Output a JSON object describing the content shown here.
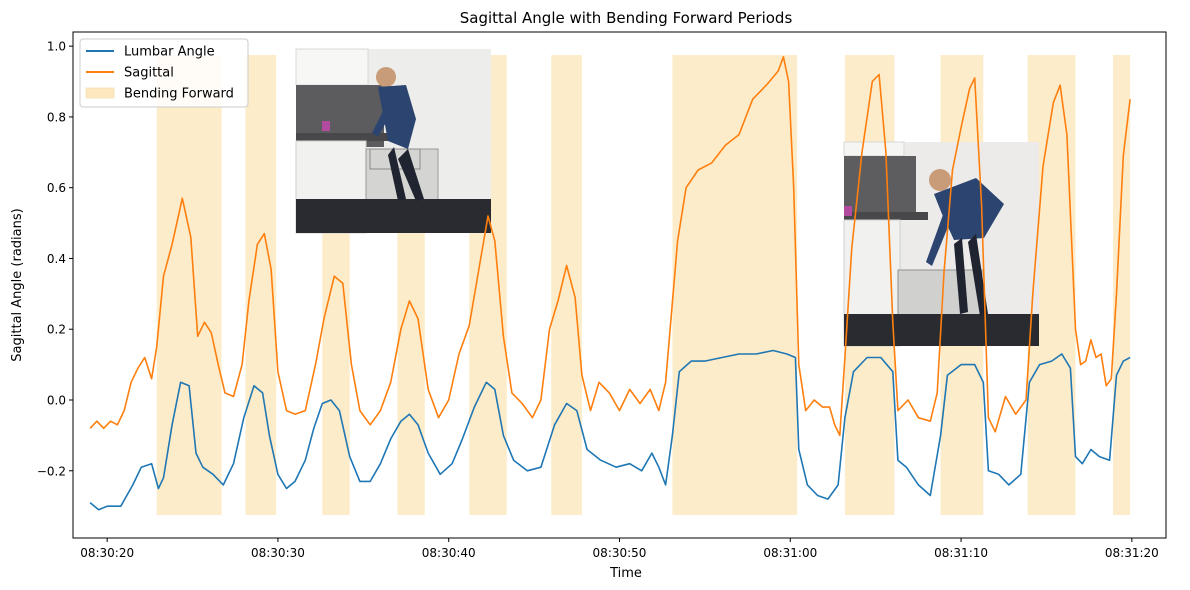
{
  "chart_data": {
    "type": "line",
    "title": "Sagittal Angle with Bending Forward Periods",
    "xlabel": "Time",
    "ylabel": "Sagittal Angle (radians)",
    "xlim": [
      "08:30:18",
      "08:31:22"
    ],
    "ylim": [
      -0.39,
      1.04
    ],
    "x_ticks": [
      "08:30:20",
      "08:30:30",
      "08:30:40",
      "08:30:50",
      "08:31:00",
      "08:31:10",
      "08:31:20"
    ],
    "y_ticks": [
      -0.2,
      0.0,
      0.2,
      0.4,
      0.6,
      0.8,
      1.0
    ],
    "y_tick_labels": [
      "−0.2",
      "0.0",
      "0.2",
      "0.4",
      "0.6",
      "0.8",
      "1.0"
    ],
    "grid": false,
    "legend": "top-left",
    "legend_entries": [
      {
        "label": "Lumbar Angle",
        "kind": "line",
        "color": "#1f77b4"
      },
      {
        "label": "Sagittal",
        "kind": "line",
        "color": "#ff7f0e"
      },
      {
        "label": "Bending Forward",
        "kind": "patch",
        "color": "#fde9c1"
      }
    ],
    "colors": {
      "lumbar": "#1f77b4",
      "sagittal": "#ff7f0e",
      "bending": "#fde9c1"
    },
    "bending_forward_periods": [
      [
        "08:30:22.9",
        "08:30:26.7"
      ],
      [
        "08:30:28.1",
        "08:30:29.9"
      ],
      [
        "08:30:32.6",
        "08:30:34.2"
      ],
      [
        "08:30:37.0",
        "08:30:38.6"
      ],
      [
        "08:30:41.2",
        "08:30:43.4"
      ],
      [
        "08:30:46.0",
        "08:30:47.8"
      ],
      [
        "08:30:53.1",
        "08:31:00.4"
      ],
      [
        "08:31:03.2",
        "08:31:06.1"
      ],
      [
        "08:31:08.8",
        "08:31:11.3"
      ],
      [
        "08:31:13.9",
        "08:31:16.7"
      ],
      [
        "08:31:18.9",
        "08:31:19.9"
      ]
    ],
    "series": [
      {
        "name": "Lumbar Angle",
        "color": "#1f77b4",
        "points": [
          [
            "08:30:19.0",
            -0.29
          ],
          [
            "08:30:19.5",
            -0.31
          ],
          [
            "08:30:20.0",
            -0.3
          ],
          [
            "08:30:20.8",
            -0.3
          ],
          [
            "08:30:21.5",
            -0.24
          ],
          [
            "08:30:22.0",
            -0.19
          ],
          [
            "08:30:22.6",
            -0.18
          ],
          [
            "08:30:23.0",
            -0.25
          ],
          [
            "08:30:23.3",
            -0.22
          ],
          [
            "08:30:23.8",
            -0.07
          ],
          [
            "08:30:24.3",
            0.05
          ],
          [
            "08:30:24.8",
            0.04
          ],
          [
            "08:30:25.2",
            -0.15
          ],
          [
            "08:30:25.6",
            -0.19
          ],
          [
            "08:30:26.2",
            -0.21
          ],
          [
            "08:30:26.8",
            -0.24
          ],
          [
            "08:30:27.4",
            -0.18
          ],
          [
            "08:30:28.0",
            -0.05
          ],
          [
            "08:30:28.6",
            0.04
          ],
          [
            "08:30:29.1",
            0.02
          ],
          [
            "08:30:29.5",
            -0.1
          ],
          [
            "08:30:30.0",
            -0.21
          ],
          [
            "08:30:30.5",
            -0.25
          ],
          [
            "08:30:31.0",
            -0.23
          ],
          [
            "08:30:31.6",
            -0.17
          ],
          [
            "08:30:32.1",
            -0.08
          ],
          [
            "08:30:32.6",
            -0.01
          ],
          [
            "08:30:33.1",
            0.0
          ],
          [
            "08:30:33.6",
            -0.03
          ],
          [
            "08:30:34.2",
            -0.16
          ],
          [
            "08:30:34.8",
            -0.23
          ],
          [
            "08:30:35.4",
            -0.23
          ],
          [
            "08:30:36.0",
            -0.18
          ],
          [
            "08:30:36.6",
            -0.11
          ],
          [
            "08:30:37.2",
            -0.06
          ],
          [
            "08:30:37.7",
            -0.04
          ],
          [
            "08:30:38.2",
            -0.07
          ],
          [
            "08:30:38.8",
            -0.15
          ],
          [
            "08:30:39.5",
            -0.21
          ],
          [
            "08:30:40.2",
            -0.18
          ],
          [
            "08:30:40.8",
            -0.11
          ],
          [
            "08:30:41.5",
            -0.02
          ],
          [
            "08:30:42.2",
            0.05
          ],
          [
            "08:30:42.7",
            0.03
          ],
          [
            "08:30:43.2",
            -0.1
          ],
          [
            "08:30:43.8",
            -0.17
          ],
          [
            "08:30:44.6",
            -0.2
          ],
          [
            "08:30:45.4",
            -0.19
          ],
          [
            "08:30:46.2",
            -0.07
          ],
          [
            "08:30:46.9",
            -0.01
          ],
          [
            "08:30:47.5",
            -0.03
          ],
          [
            "08:30:48.1",
            -0.14
          ],
          [
            "08:30:48.9",
            -0.17
          ],
          [
            "08:30:49.8",
            -0.19
          ],
          [
            "08:30:50.6",
            -0.18
          ],
          [
            "08:30:51.3",
            -0.2
          ],
          [
            "08:30:51.9",
            -0.15
          ],
          [
            "08:30:52.3",
            -0.19
          ],
          [
            "08:30:52.7",
            -0.24
          ],
          [
            "08:30:53.1",
            -0.1
          ],
          [
            "08:30:53.5",
            0.08
          ],
          [
            "08:30:54.2",
            0.11
          ],
          [
            "08:30:55.0",
            0.11
          ],
          [
            "08:30:56.0",
            0.12
          ],
          [
            "08:30:57.0",
            0.13
          ],
          [
            "08:30:58.0",
            0.13
          ],
          [
            "08:30:59.0",
            0.14
          ],
          [
            "08:30:59.8",
            0.13
          ],
          [
            "08:31:00.3",
            0.12
          ],
          [
            "08:31:00.5",
            -0.14
          ],
          [
            "08:31:01.0",
            -0.24
          ],
          [
            "08:31:01.6",
            -0.27
          ],
          [
            "08:31:02.2",
            -0.28
          ],
          [
            "08:31:02.8",
            -0.24
          ],
          [
            "08:31:03.2",
            -0.05
          ],
          [
            "08:31:03.7",
            0.08
          ],
          [
            "08:31:04.5",
            0.12
          ],
          [
            "08:31:05.3",
            0.12
          ],
          [
            "08:31:06.0",
            0.08
          ],
          [
            "08:31:06.3",
            -0.17
          ],
          [
            "08:31:06.8",
            -0.19
          ],
          [
            "08:31:07.5",
            -0.24
          ],
          [
            "08:31:08.2",
            -0.27
          ],
          [
            "08:31:08.8",
            -0.1
          ],
          [
            "08:31:09.2",
            0.07
          ],
          [
            "08:31:10.0",
            0.1
          ],
          [
            "08:31:10.8",
            0.1
          ],
          [
            "08:31:11.3",
            0.05
          ],
          [
            "08:31:11.6",
            -0.2
          ],
          [
            "08:31:12.2",
            -0.21
          ],
          [
            "08:31:12.8",
            -0.24
          ],
          [
            "08:31:13.5",
            -0.21
          ],
          [
            "08:31:14.0",
            0.05
          ],
          [
            "08:31:14.6",
            0.1
          ],
          [
            "08:31:15.3",
            0.11
          ],
          [
            "08:31:15.9",
            0.13
          ],
          [
            "08:31:16.4",
            0.09
          ],
          [
            "08:31:16.7",
            -0.16
          ],
          [
            "08:31:17.1",
            -0.18
          ],
          [
            "08:31:17.6",
            -0.14
          ],
          [
            "08:31:18.1",
            -0.16
          ],
          [
            "08:31:18.7",
            -0.17
          ],
          [
            "08:31:19.1",
            0.07
          ],
          [
            "08:31:19.5",
            0.11
          ],
          [
            "08:31:19.9",
            0.12
          ]
        ]
      },
      {
        "name": "Sagittal",
        "color": "#ff7f0e",
        "points": [
          [
            "08:30:19.0",
            -0.08
          ],
          [
            "08:30:19.4",
            -0.06
          ],
          [
            "08:30:19.8",
            -0.08
          ],
          [
            "08:30:20.2",
            -0.06
          ],
          [
            "08:30:20.6",
            -0.07
          ],
          [
            "08:30:21.0",
            -0.03
          ],
          [
            "08:30:21.4",
            0.05
          ],
          [
            "08:30:21.8",
            0.09
          ],
          [
            "08:30:22.2",
            0.12
          ],
          [
            "08:30:22.6",
            0.06
          ],
          [
            "08:30:22.9",
            0.15
          ],
          [
            "08:30:23.3",
            0.35
          ],
          [
            "08:30:23.8",
            0.44
          ],
          [
            "08:30:24.4",
            0.57
          ],
          [
            "08:30:24.9",
            0.46
          ],
          [
            "08:30:25.3",
            0.18
          ],
          [
            "08:30:25.7",
            0.22
          ],
          [
            "08:30:26.1",
            0.19
          ],
          [
            "08:30:26.5",
            0.1
          ],
          [
            "08:30:26.9",
            0.02
          ],
          [
            "08:30:27.4",
            0.01
          ],
          [
            "08:30:27.9",
            0.1
          ],
          [
            "08:30:28.3",
            0.28
          ],
          [
            "08:30:28.8",
            0.44
          ],
          [
            "08:30:29.2",
            0.47
          ],
          [
            "08:30:29.6",
            0.37
          ],
          [
            "08:30:30.0",
            0.08
          ],
          [
            "08:30:30.5",
            -0.03
          ],
          [
            "08:30:31.0",
            -0.04
          ],
          [
            "08:30:31.6",
            -0.03
          ],
          [
            "08:30:32.2",
            0.1
          ],
          [
            "08:30:32.7",
            0.23
          ],
          [
            "08:30:33.3",
            0.35
          ],
          [
            "08:30:33.8",
            0.33
          ],
          [
            "08:30:34.3",
            0.1
          ],
          [
            "08:30:34.8",
            -0.03
          ],
          [
            "08:30:35.4",
            -0.07
          ],
          [
            "08:30:36.0",
            -0.03
          ],
          [
            "08:30:36.6",
            0.05
          ],
          [
            "08:30:37.2",
            0.2
          ],
          [
            "08:30:37.7",
            0.28
          ],
          [
            "08:30:38.2",
            0.23
          ],
          [
            "08:30:38.8",
            0.03
          ],
          [
            "08:30:39.4",
            -0.05
          ],
          [
            "08:30:40.0",
            0.0
          ],
          [
            "08:30:40.6",
            0.13
          ],
          [
            "08:30:41.2",
            0.21
          ],
          [
            "08:30:41.8",
            0.38
          ],
          [
            "08:30:42.3",
            0.52
          ],
          [
            "08:30:42.7",
            0.45
          ],
          [
            "08:30:43.2",
            0.18
          ],
          [
            "08:30:43.7",
            0.02
          ],
          [
            "08:30:44.3",
            -0.01
          ],
          [
            "08:30:44.9",
            -0.05
          ],
          [
            "08:30:45.4",
            0.0
          ],
          [
            "08:30:45.9",
            0.2
          ],
          [
            "08:30:46.4",
            0.28
          ],
          [
            "08:30:46.9",
            0.38
          ],
          [
            "08:30:47.4",
            0.29
          ],
          [
            "08:30:47.8",
            0.07
          ],
          [
            "08:30:48.3",
            -0.03
          ],
          [
            "08:30:48.8",
            0.05
          ],
          [
            "08:30:49.4",
            0.02
          ],
          [
            "08:30:50.0",
            -0.03
          ],
          [
            "08:30:50.6",
            0.03
          ],
          [
            "08:30:51.2",
            -0.01
          ],
          [
            "08:30:51.8",
            0.03
          ],
          [
            "08:30:52.3",
            -0.03
          ],
          [
            "08:30:52.7",
            0.05
          ],
          [
            "08:30:53.0",
            0.22
          ],
          [
            "08:30:53.4",
            0.45
          ],
          [
            "08:30:53.9",
            0.6
          ],
          [
            "08:30:54.6",
            0.65
          ],
          [
            "08:30:55.4",
            0.67
          ],
          [
            "08:30:56.2",
            0.72
          ],
          [
            "08:30:57.0",
            0.75
          ],
          [
            "08:30:57.8",
            0.85
          ],
          [
            "08:30:58.6",
            0.89
          ],
          [
            "08:30:59.3",
            0.93
          ],
          [
            "08:30:59.6",
            0.97
          ],
          [
            "08:30:59.9",
            0.9
          ],
          [
            "08:31:00.2",
            0.6
          ],
          [
            "08:31:00.5",
            0.1
          ],
          [
            "08:31:00.9",
            -0.03
          ],
          [
            "08:31:01.4",
            0.0
          ],
          [
            "08:31:01.9",
            -0.02
          ],
          [
            "08:31:02.3",
            -0.02
          ],
          [
            "08:31:02.6",
            -0.07
          ],
          [
            "08:31:02.9",
            -0.1
          ],
          [
            "08:31:03.2",
            0.12
          ],
          [
            "08:31:03.6",
            0.43
          ],
          [
            "08:31:04.2",
            0.7
          ],
          [
            "08:31:04.8",
            0.9
          ],
          [
            "08:31:05.2",
            0.92
          ],
          [
            "08:31:05.6",
            0.7
          ],
          [
            "08:31:06.0",
            0.22
          ],
          [
            "08:31:06.3",
            -0.03
          ],
          [
            "08:31:06.9",
            0.0
          ],
          [
            "08:31:07.5",
            -0.05
          ],
          [
            "08:31:08.2",
            -0.06
          ],
          [
            "08:31:08.6",
            0.02
          ],
          [
            "08:31:09.0",
            0.36
          ],
          [
            "08:31:09.5",
            0.65
          ],
          [
            "08:31:10.0",
            0.77
          ],
          [
            "08:31:10.5",
            0.88
          ],
          [
            "08:31:10.8",
            0.91
          ],
          [
            "08:31:11.2",
            0.55
          ],
          [
            "08:31:11.6",
            -0.05
          ],
          [
            "08:31:12.0",
            -0.09
          ],
          [
            "08:31:12.6",
            0.01
          ],
          [
            "08:31:13.2",
            -0.04
          ],
          [
            "08:31:13.8",
            0.0
          ],
          [
            "08:31:14.2",
            0.3
          ],
          [
            "08:31:14.8",
            0.66
          ],
          [
            "08:31:15.4",
            0.84
          ],
          [
            "08:31:15.8",
            0.89
          ],
          [
            "08:31:16.2",
            0.75
          ],
          [
            "08:31:16.7",
            0.2
          ],
          [
            "08:31:17.0",
            0.1
          ],
          [
            "08:31:17.3",
            0.11
          ],
          [
            "08:31:17.6",
            0.17
          ],
          [
            "08:31:17.9",
            0.12
          ],
          [
            "08:31:18.2",
            0.13
          ],
          [
            "08:31:18.5",
            0.04
          ],
          [
            "08:31:18.8",
            0.06
          ],
          [
            "08:31:19.1",
            0.3
          ],
          [
            "08:31:19.5",
            0.69
          ],
          [
            "08:31:19.9",
            0.85
          ]
        ]
      }
    ]
  }
}
